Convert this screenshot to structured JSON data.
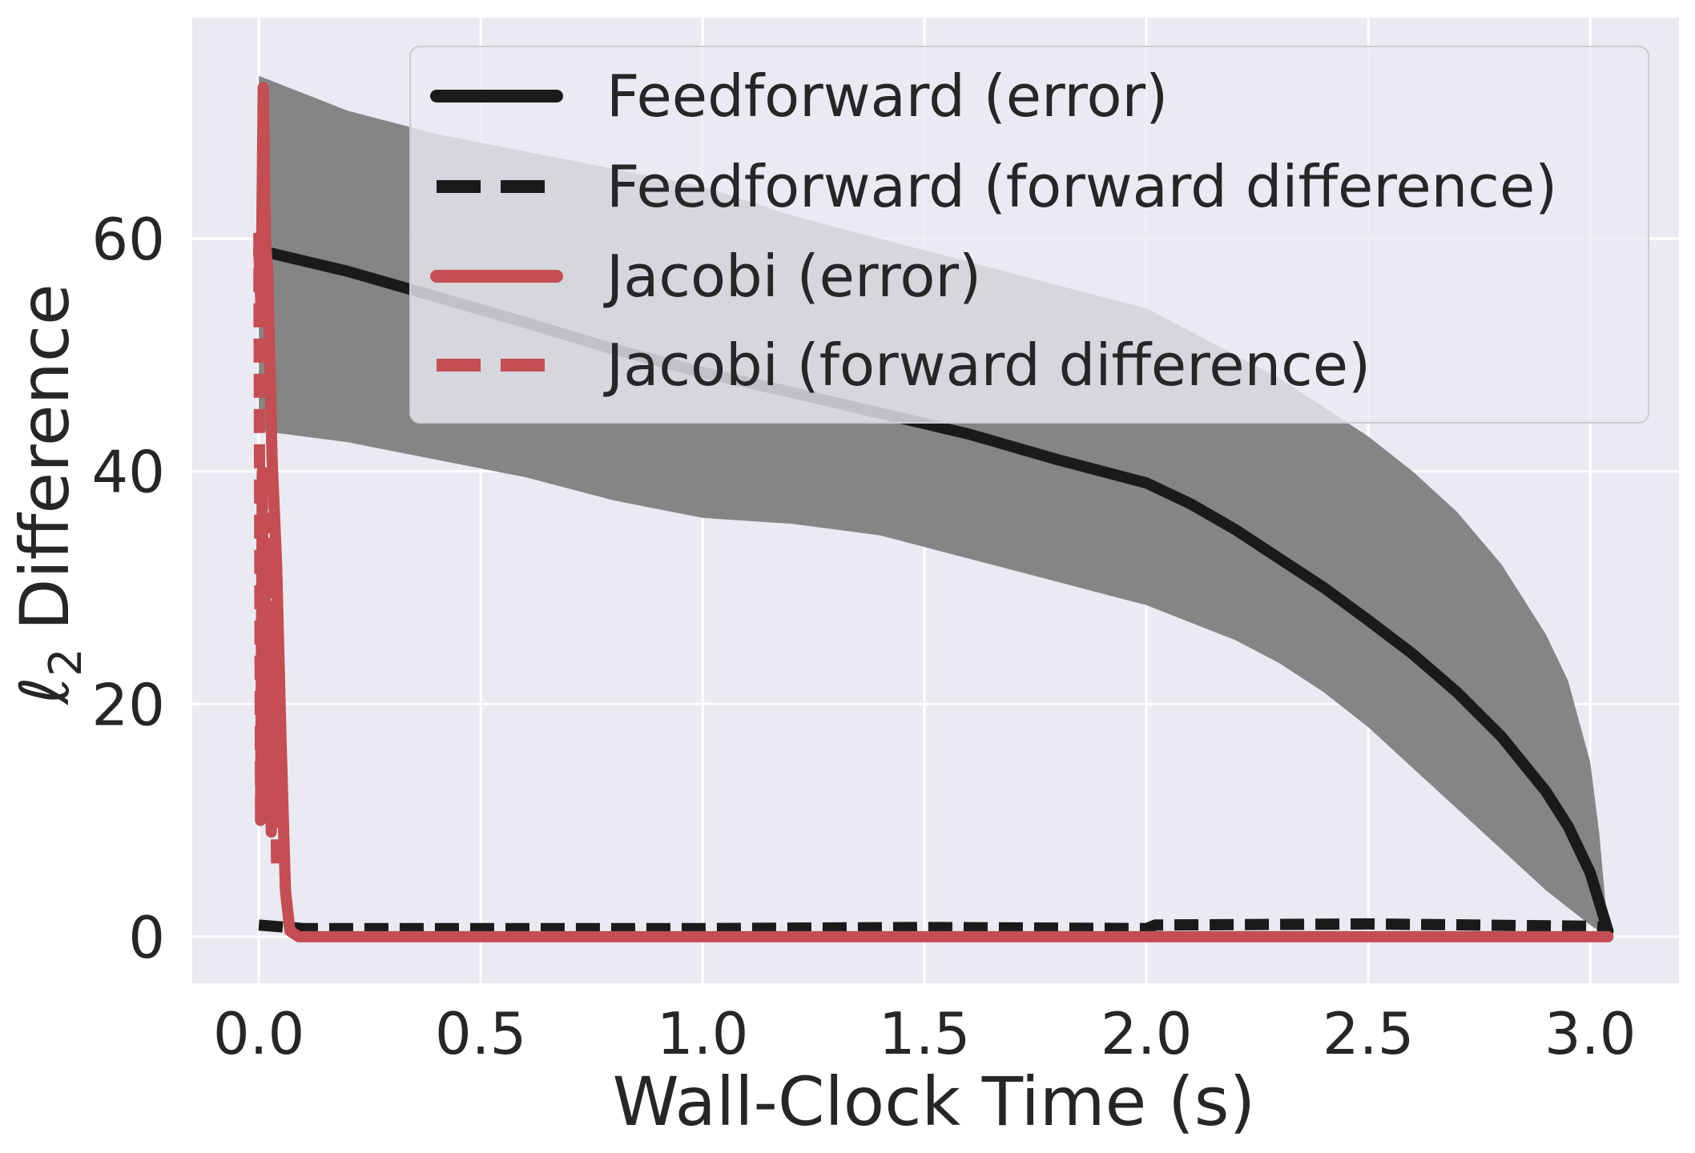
{
  "chart_data": {
    "type": "line",
    "xlabel": "Wall-Clock Time (s)",
    "ylabel": "Difference",
    "ylabel_prefix": "ℓ",
    "ylabel_subscript": "2",
    "xlim": [
      -0.15,
      3.2
    ],
    "ylim": [
      -4,
      79
    ],
    "xticks": [
      0.0,
      0.5,
      1.0,
      1.5,
      2.0,
      2.5,
      3.0
    ],
    "xtick_labels": [
      "0.0",
      "0.5",
      "1.0",
      "1.5",
      "2.0",
      "2.5",
      "3.0"
    ],
    "yticks": [
      0,
      20,
      40,
      60
    ],
    "ytick_labels": [
      "0",
      "20",
      "40",
      "60"
    ],
    "grid": true,
    "legend_position": "upper-right",
    "series": [
      {
        "name": "Feedforward (error)",
        "style": "solid",
        "color": "#1a1a1a",
        "x": [
          0.0,
          0.2,
          0.4,
          0.6,
          0.8,
          1.0,
          1.2,
          1.4,
          1.6,
          1.8,
          2.0,
          2.1,
          2.2,
          2.3,
          2.4,
          2.5,
          2.6,
          2.7,
          2.8,
          2.9,
          2.95,
          3.0,
          3.02,
          3.04
        ],
        "y": [
          59.0,
          57.2,
          55.0,
          52.8,
          50.5,
          48.5,
          46.8,
          45.0,
          43.2,
          41.0,
          39.0,
          37.2,
          35.0,
          32.5,
          30.0,
          27.2,
          24.3,
          21.0,
          17.2,
          12.5,
          9.5,
          5.5,
          3.0,
          0.5
        ],
        "band_upper": [
          74.0,
          71.0,
          69.0,
          67.5,
          66.0,
          64.5,
          62.0,
          60.0,
          58.0,
          56.0,
          54.0,
          52.0,
          50.0,
          48.0,
          45.5,
          43.0,
          40.0,
          36.5,
          32.0,
          26.0,
          22.0,
          15.0,
          9.0,
          0.5
        ],
        "band_lower": [
          43.5,
          42.5,
          41.0,
          39.5,
          37.5,
          36.0,
          35.5,
          34.5,
          32.5,
          30.5,
          28.5,
          27.0,
          25.5,
          23.5,
          21.0,
          18.0,
          14.5,
          11.0,
          7.5,
          4.0,
          2.5,
          1.0,
          0.5,
          0.3
        ],
        "band_color": "#808080"
      },
      {
        "name": "Feedforward (forward difference)",
        "style": "dashed",
        "color": "#1a1a1a",
        "x": [
          0.0,
          0.1,
          0.5,
          1.0,
          1.5,
          2.0,
          2.02,
          2.5,
          3.0,
          3.04
        ],
        "y": [
          1.0,
          0.7,
          0.7,
          0.7,
          0.8,
          0.7,
          1.0,
          1.1,
          0.9,
          0.8
        ]
      },
      {
        "name": "Jacobi (error)",
        "style": "solid",
        "color": "#c44e52",
        "x": [
          0.0,
          0.005,
          0.01,
          0.015,
          0.02,
          0.03,
          0.04,
          0.05,
          0.06,
          0.07,
          0.09,
          0.5,
          1.0,
          1.5,
          2.0,
          2.5,
          3.0,
          3.04
        ],
        "y": [
          59.0,
          54.0,
          73.0,
          60.0,
          57.0,
          41.0,
          32.0,
          17.0,
          4.0,
          0.5,
          0.0,
          0.0,
          0.0,
          0.0,
          0.0,
          0.0,
          0.0,
          0.0
        ]
      },
      {
        "name": "Jacobi (forward difference)",
        "style": "dashed",
        "color": "#c44e52",
        "x": [
          0.0,
          0.004,
          0.008,
          0.012,
          0.016,
          0.02,
          0.024,
          0.028,
          0.034,
          0.04
        ],
        "y": [
          60.5,
          10.0,
          40.0,
          14.0,
          36.0,
          12.0,
          32.0,
          9.0,
          26.0,
          6.0
        ]
      }
    ]
  }
}
